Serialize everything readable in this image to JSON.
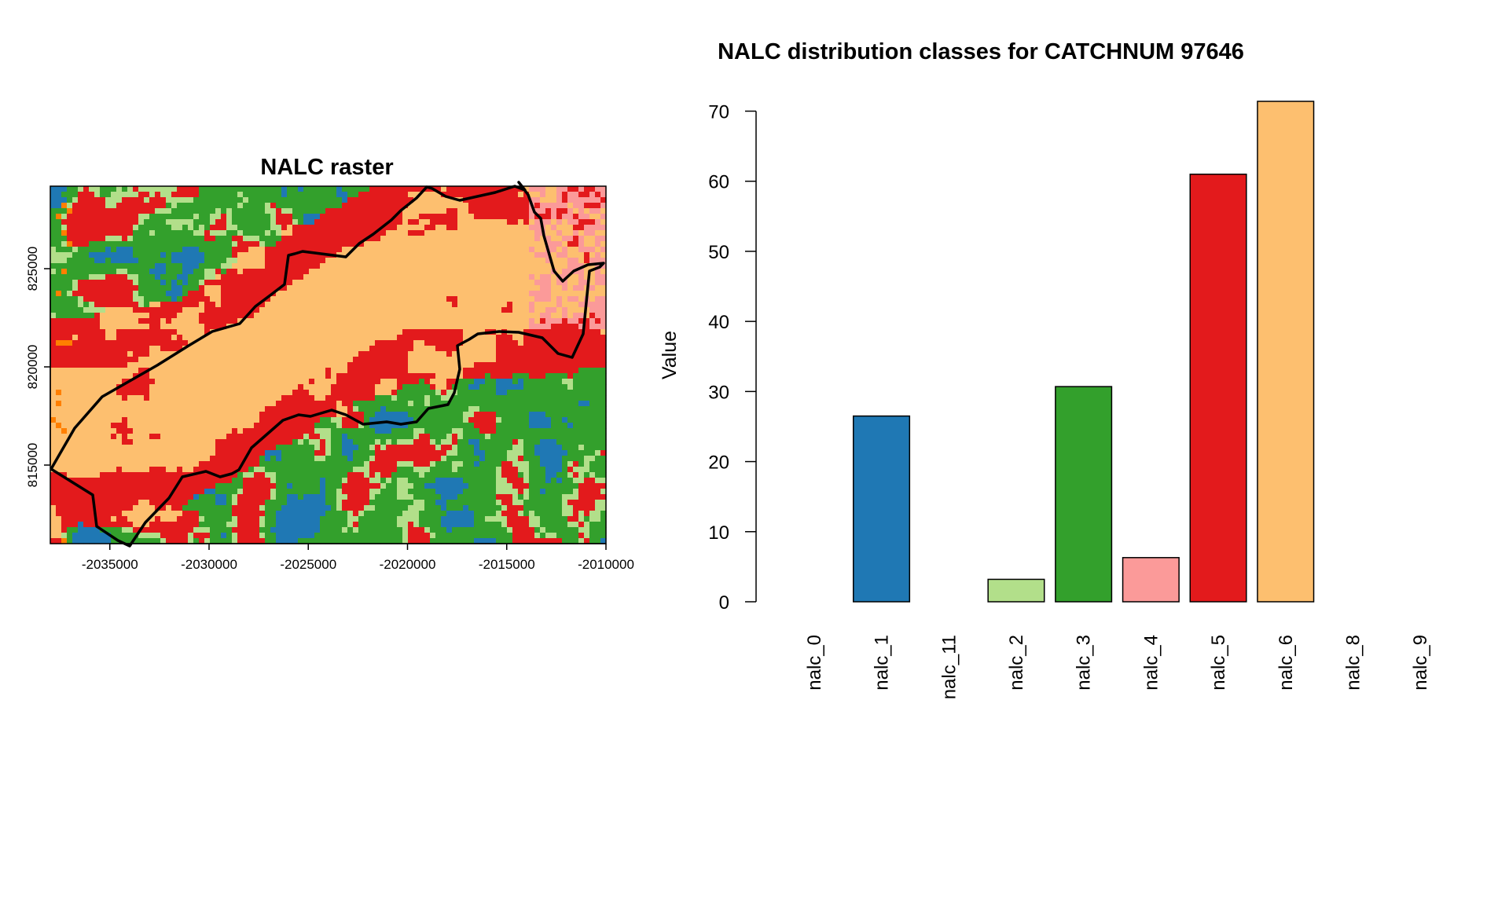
{
  "figure": {
    "colors": {
      "nalc_1": "#1f78b4",
      "nalc_2": "#b2df8a",
      "nalc_3": "#33a02c",
      "nalc_4": "#fb9a99",
      "nalc_5": "#e31a1c",
      "nalc_6": "#fdbf6f",
      "nalc_other": "#ff7f00",
      "outline": "#000000"
    }
  },
  "chart_data": [
    {
      "type": "heatmap",
      "title": "NALC raster",
      "xlabel": "",
      "ylabel": "",
      "x_ticks": [
        "-2035000",
        "-2030000",
        "-2025000",
        "-2020000",
        "-2015000",
        "-2010000"
      ],
      "y_ticks": [
        "815000",
        "820000",
        "825000"
      ],
      "xlim": [
        -2038000,
        -2010000
      ],
      "ylim": [
        811000,
        829200
      ],
      "legend": "none",
      "catchment_outline": true
    },
    {
      "type": "bar",
      "title": "NALC distribution classes for CATCHNUM 97646",
      "xlabel": "",
      "ylabel": "Value",
      "categories": [
        "nalc_0",
        "nalc_1",
        "nalc_11",
        "nalc_2",
        "nalc_3",
        "nalc_4",
        "nalc_5",
        "nalc_6",
        "nalc_8",
        "nalc_9"
      ],
      "values": [
        0,
        26.5,
        0,
        3.2,
        30.7,
        6.3,
        61.0,
        71.4,
        0,
        0
      ],
      "bar_colors": [
        "#ffffff",
        "#1f78b4",
        "#ffffff",
        "#b2df8a",
        "#33a02c",
        "#fb9a99",
        "#e31a1c",
        "#fdbf6f",
        "#ffffff",
        "#ffffff"
      ],
      "y_ticks": [
        "0",
        "10",
        "20",
        "30",
        "40",
        "50",
        "60",
        "70"
      ],
      "ylim": [
        0,
        71.4
      ],
      "grid": false
    }
  ]
}
